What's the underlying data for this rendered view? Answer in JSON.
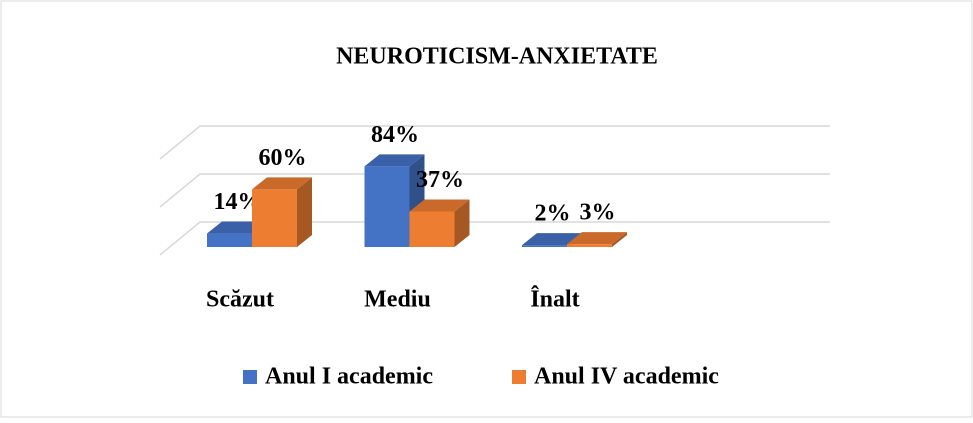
{
  "chart_data": {
    "type": "bar3d",
    "title": "NEUROTICISM-ANXIETATE",
    "categories": [
      "Scăzut",
      "Mediu",
      "Înalt"
    ],
    "series": [
      {
        "name": "Anul I academic",
        "color": "#4472c4",
        "values": [
          14,
          84,
          2
        ],
        "value_labels": [
          "14%",
          "84%",
          "2%"
        ]
      },
      {
        "name": "Anul IV academic",
        "color": "#ed7d31",
        "values": [
          60,
          37,
          3
        ],
        "value_labels": [
          "60%",
          "37%",
          "3%"
        ]
      }
    ],
    "ylim": [
      0,
      100
    ],
    "yticks": [
      0,
      50,
      100
    ],
    "grid": true,
    "legend": "bottom"
  }
}
